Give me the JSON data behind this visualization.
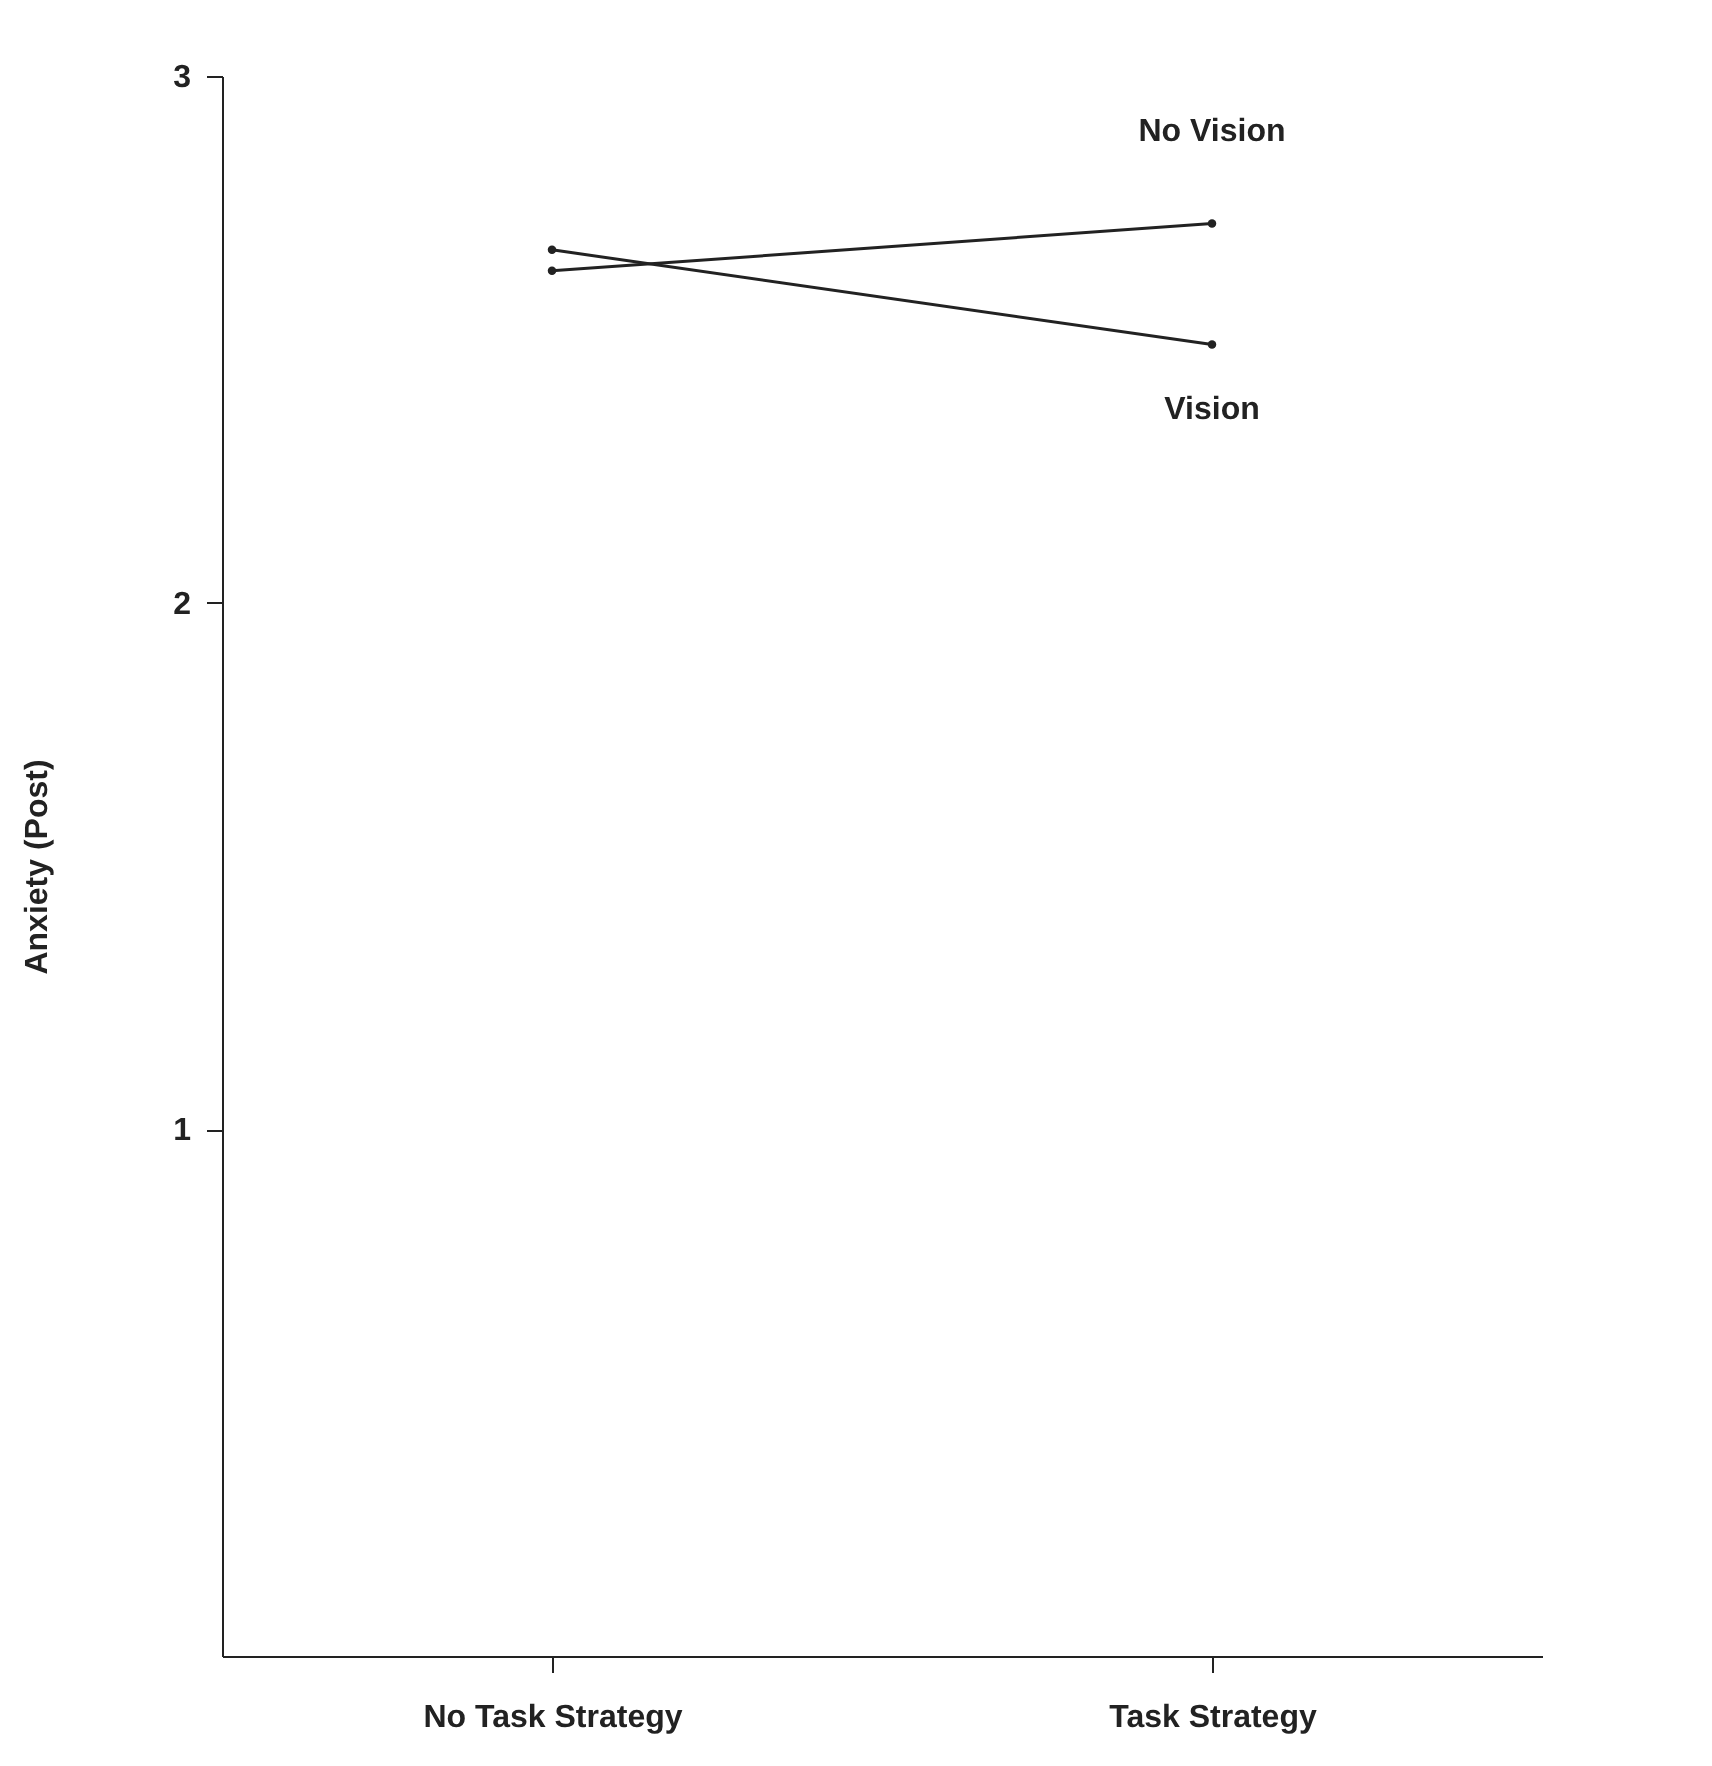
{
  "chart_data": {
    "type": "line",
    "ylabel": "Anxiety (Post)",
    "categories": [
      "No Task Strategy",
      "Task Strategy"
    ],
    "series": [
      {
        "name": "No Vision",
        "color": "#222222",
        "values": [
          2.63,
          2.72
        ]
      },
      {
        "name": "Vision",
        "color": "#222222",
        "values": [
          2.67,
          2.49
        ]
      }
    ],
    "ylim": [
      0,
      3
    ],
    "yticks": [
      1,
      2,
      3
    ],
    "marker": "circle",
    "line_style": "solid",
    "grid": false,
    "legend": false
  }
}
